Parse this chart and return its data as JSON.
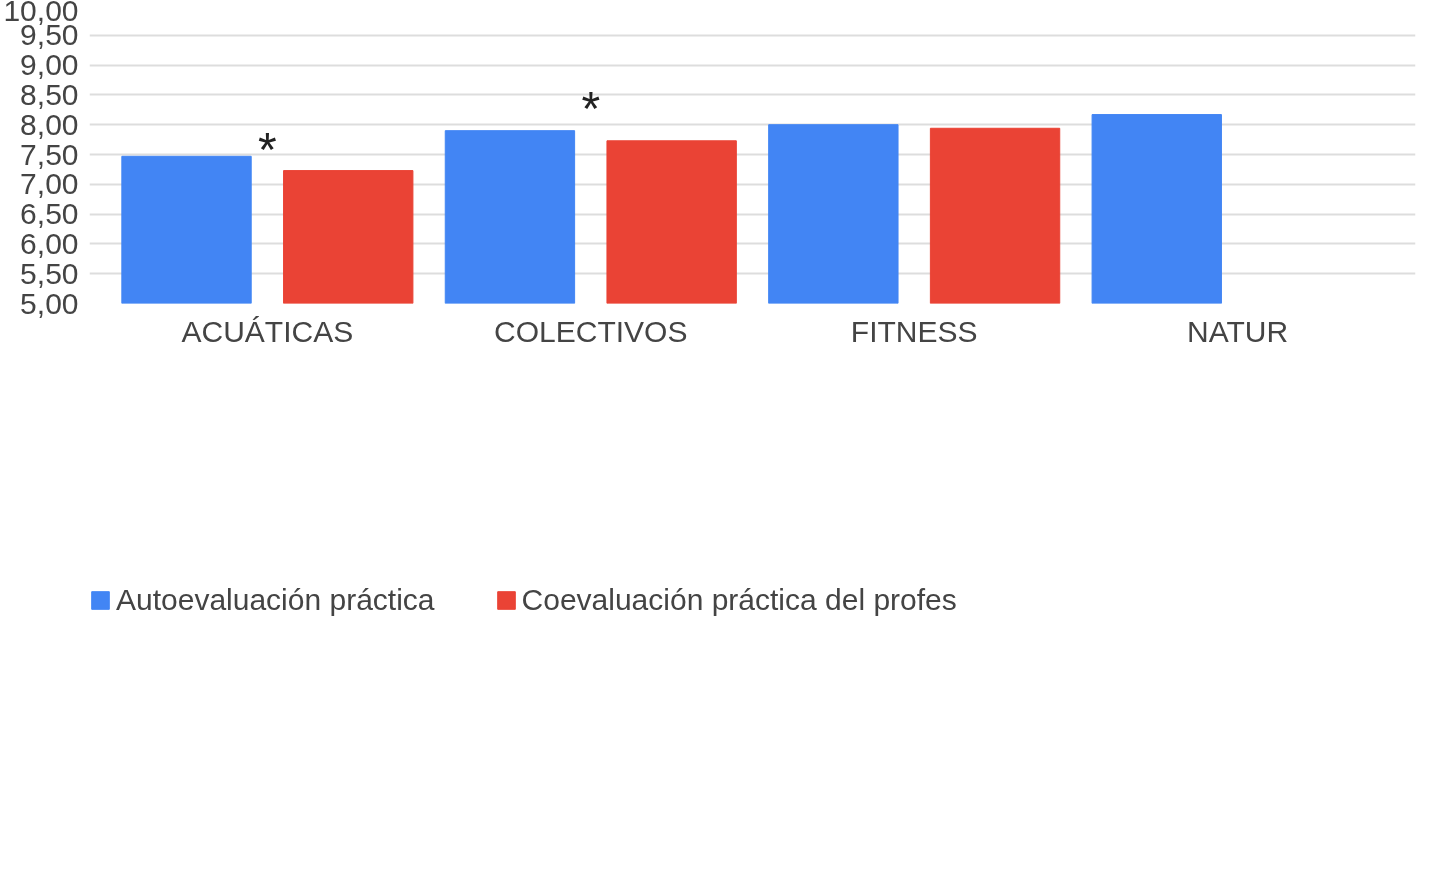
{
  "chart_data": {
    "type": "bar",
    "categories": [
      "ACUÁTICAS",
      "COLECTIVOS",
      "FITNESS",
      "NATUR"
    ],
    "series": [
      {
        "name": "Autoevaluación práctica",
        "color": "#4285f4",
        "values": [
          7.47,
          7.9,
          8.0,
          8.17
        ]
      },
      {
        "name": "Coevaluación práctica del profes",
        "color": "#ea4335",
        "values": [
          7.23,
          7.73,
          7.94,
          null
        ]
      }
    ],
    "ylim": [
      5,
      10
    ],
    "yticks": [
      {
        "value": 5,
        "label": "5,00"
      },
      {
        "value": 5.5,
        "label": "5,50"
      },
      {
        "value": 6,
        "label": "6,00"
      },
      {
        "value": 6.5,
        "label": "6,50"
      },
      {
        "value": 7,
        "label": "7,00"
      },
      {
        "value": 7.5,
        "label": "7,50"
      },
      {
        "value": 8,
        "label": "8,00"
      },
      {
        "value": 8.5,
        "label": "8,50"
      },
      {
        "value": 9,
        "label": "9,00"
      },
      {
        "value": 9.5,
        "label": "9,50"
      },
      {
        "value": 10,
        "label": "10,00"
      }
    ],
    "annotations": [
      "*",
      "*"
    ],
    "grid": "y",
    "legend": "bottom"
  }
}
